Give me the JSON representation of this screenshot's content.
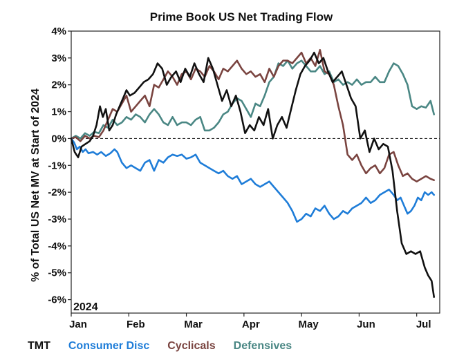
{
  "chart_data": {
    "type": "line",
    "title": "Prime Book US Net Trading Flow",
    "ylabel": "% of Total US Net MV at Start of 2024",
    "xlabel": "",
    "corner_label": "2024",
    "ylim": [
      -6.5,
      4
    ],
    "yticks": [
      4,
      3,
      2,
      1,
      0,
      -1,
      -2,
      -3,
      -4,
      -5,
      -6
    ],
    "ytick_labels": [
      "4%",
      "3%",
      "2%",
      "1%",
      "0%",
      "-1%",
      "-2%",
      "-3%",
      "-4%",
      "-5%",
      "-6%"
    ],
    "xlim": [
      0,
      6.4
    ],
    "xticks": [
      0,
      1,
      2,
      3,
      4,
      5,
      6
    ],
    "xtick_labels": [
      "Jan",
      "Feb",
      "Mar",
      "Apr",
      "May",
      "Jun",
      "Jul"
    ],
    "zero_line": "dashed",
    "legend_position": "bottom-left",
    "series": [
      {
        "name": "TMT",
        "color": "#111111",
        "x": [
          0,
          0.06,
          0.12,
          0.18,
          0.25,
          0.32,
          0.38,
          0.44,
          0.5,
          0.55,
          0.6,
          0.66,
          0.72,
          0.78,
          0.84,
          0.9,
          0.96,
          1.02,
          1.1,
          1.18,
          1.26,
          1.34,
          1.42,
          1.5,
          1.58,
          1.66,
          1.74,
          1.82,
          1.9,
          1.98,
          2.06,
          2.14,
          2.22,
          2.3,
          2.38,
          2.46,
          2.54,
          2.62,
          2.7,
          2.78,
          2.86,
          2.94,
          3.02,
          3.1,
          3.18,
          3.26,
          3.34,
          3.42,
          3.5,
          3.58,
          3.66,
          3.74,
          3.82,
          3.9,
          3.98,
          4.06,
          4.14,
          4.22,
          4.3,
          4.38,
          4.46,
          4.54,
          4.62,
          4.7,
          4.78,
          4.86,
          4.94,
          5.02,
          5.1,
          5.18,
          5.26,
          5.34,
          5.42,
          5.5,
          5.58,
          5.66,
          5.74,
          5.82,
          5.9,
          5.98,
          6.06,
          6.14,
          6.2,
          6.26,
          6.3
        ],
        "y": [
          0,
          -0.5,
          -0.7,
          -0.3,
          -0.2,
          -0.1,
          0.1,
          0.5,
          1.2,
          0.8,
          1.1,
          0.3,
          0.5,
          0.9,
          1.2,
          1.5,
          1.8,
          1.6,
          1.7,
          1.9,
          2.1,
          2.2,
          2.4,
          2.8,
          2.6,
          2.0,
          2.3,
          2.5,
          2.1,
          2.6,
          2.3,
          2.8,
          2.4,
          2.1,
          3.0,
          2.6,
          2.0,
          1.4,
          1.8,
          1.2,
          1.6,
          1.0,
          0.2,
          0.5,
          0.3,
          0.8,
          0.5,
          1.1,
          0.0,
          0.5,
          0.8,
          0.4,
          1.1,
          1.8,
          2.4,
          2.7,
          2.9,
          3.2,
          2.8,
          3.0,
          2.5,
          2.1,
          2.3,
          2.5,
          2.0,
          1.5,
          1.2,
          0.0,
          0.3,
          -0.5,
          0.0,
          -0.4,
          -0.2,
          -0.3,
          -1.2,
          -2.7,
          -3.9,
          -4.3,
          -4.2,
          -4.3,
          -4.2,
          -4.8,
          -5.1,
          -5.3,
          -5.9
        ]
      },
      {
        "name": "Consumer Disc",
        "color": "#1f7dd8",
        "x": [
          0,
          0.05,
          0.1,
          0.15,
          0.2,
          0.25,
          0.3,
          0.38,
          0.45,
          0.52,
          0.6,
          0.68,
          0.75,
          0.8,
          0.88,
          0.96,
          1.04,
          1.12,
          1.2,
          1.28,
          1.36,
          1.44,
          1.52,
          1.6,
          1.68,
          1.76,
          1.84,
          1.92,
          2.0,
          2.08,
          2.16,
          2.24,
          2.32,
          2.4,
          2.48,
          2.56,
          2.64,
          2.72,
          2.8,
          2.88,
          2.96,
          3.04,
          3.12,
          3.2,
          3.28,
          3.36,
          3.44,
          3.52,
          3.6,
          3.68,
          3.76,
          3.84,
          3.92,
          4.0,
          4.08,
          4.16,
          4.24,
          4.32,
          4.4,
          4.48,
          4.56,
          4.64,
          4.72,
          4.8,
          4.88,
          4.96,
          5.04,
          5.12,
          5.2,
          5.28,
          5.36,
          5.44,
          5.52,
          5.6,
          5.66,
          5.72,
          5.78,
          5.84,
          5.9,
          5.96,
          6.02,
          6.08,
          6.14,
          6.2,
          6.26,
          6.3
        ],
        "y": [
          0,
          -0.15,
          -0.4,
          -0.3,
          -0.5,
          -0.4,
          -0.55,
          -0.5,
          -0.6,
          -0.5,
          -0.65,
          -0.55,
          -0.4,
          -0.5,
          -0.9,
          -1.1,
          -1.0,
          -1.1,
          -1.2,
          -0.9,
          -0.8,
          -1.2,
          -0.8,
          -0.9,
          -0.7,
          -0.6,
          -0.65,
          -0.6,
          -0.75,
          -0.7,
          -0.6,
          -0.9,
          -1.0,
          -1.1,
          -1.2,
          -1.3,
          -1.2,
          -1.4,
          -1.5,
          -1.4,
          -1.7,
          -1.6,
          -1.5,
          -1.7,
          -1.8,
          -1.7,
          -1.6,
          -1.8,
          -2.0,
          -2.2,
          -2.4,
          -2.7,
          -3.1,
          -3.0,
          -2.8,
          -2.9,
          -2.6,
          -2.7,
          -2.5,
          -2.8,
          -3.0,
          -2.9,
          -2.7,
          -2.8,
          -2.6,
          -2.5,
          -2.4,
          -2.2,
          -2.4,
          -2.3,
          -2.1,
          -2.0,
          -1.9,
          -2.1,
          -2.3,
          -2.2,
          -2.5,
          -2.8,
          -2.7,
          -2.5,
          -2.2,
          -2.3,
          -2.0,
          -2.1,
          -2.0,
          -2.1
        ]
      },
      {
        "name": "Cyclicals",
        "color": "#7a4440",
        "x": [
          0,
          0.08,
          0.16,
          0.24,
          0.32,
          0.4,
          0.48,
          0.56,
          0.64,
          0.72,
          0.8,
          0.88,
          0.96,
          1.04,
          1.12,
          1.2,
          1.28,
          1.36,
          1.44,
          1.52,
          1.6,
          1.68,
          1.76,
          1.84,
          1.92,
          2.0,
          2.08,
          2.16,
          2.24,
          2.32,
          2.4,
          2.48,
          2.56,
          2.64,
          2.72,
          2.8,
          2.88,
          2.96,
          3.04,
          3.12,
          3.2,
          3.28,
          3.36,
          3.44,
          3.52,
          3.6,
          3.68,
          3.76,
          3.84,
          3.92,
          4.0,
          4.08,
          4.16,
          4.24,
          4.32,
          4.4,
          4.48,
          4.56,
          4.64,
          4.72,
          4.8,
          4.88,
          4.96,
          5.04,
          5.12,
          5.2,
          5.28,
          5.36,
          5.44,
          5.52,
          5.6,
          5.68,
          5.76,
          5.84,
          5.92,
          6.0,
          6.08,
          6.16,
          6.24,
          6.3
        ],
        "y": [
          0,
          0.05,
          -0.1,
          0.1,
          0.0,
          0.1,
          0.05,
          0.3,
          0.7,
          1.1,
          1.0,
          1.3,
          1.6,
          1.0,
          1.2,
          1.4,
          1.6,
          1.2,
          2.0,
          1.9,
          2.2,
          2.5,
          2.3,
          2.0,
          2.4,
          2.5,
          2.2,
          2.6,
          2.5,
          2.3,
          2.7,
          2.5,
          2.2,
          2.6,
          2.5,
          2.7,
          2.9,
          2.6,
          2.4,
          2.5,
          2.3,
          2.4,
          2.1,
          2.6,
          2.3,
          2.7,
          2.9,
          2.9,
          2.8,
          3.0,
          3.2,
          2.8,
          3.0,
          2.7,
          3.3,
          2.5,
          2.4,
          2.0,
          1.2,
          0.5,
          -0.6,
          -0.8,
          -0.6,
          -1.0,
          -1.3,
          -1.1,
          -1.0,
          -1.3,
          -1.1,
          -0.6,
          -0.5,
          -1.0,
          -1.4,
          -1.3,
          -1.5,
          -1.6,
          -1.5,
          -1.4,
          -1.5,
          -1.55
        ]
      },
      {
        "name": "Defensives",
        "color": "#4a8784",
        "x": [
          0,
          0.08,
          0.16,
          0.24,
          0.32,
          0.4,
          0.48,
          0.56,
          0.64,
          0.72,
          0.8,
          0.88,
          0.96,
          1.04,
          1.12,
          1.2,
          1.28,
          1.36,
          1.44,
          1.52,
          1.6,
          1.68,
          1.76,
          1.84,
          1.92,
          2.0,
          2.08,
          2.16,
          2.24,
          2.32,
          2.4,
          2.48,
          2.56,
          2.64,
          2.72,
          2.8,
          2.88,
          2.96,
          3.04,
          3.12,
          3.2,
          3.28,
          3.36,
          3.44,
          3.52,
          3.6,
          3.68,
          3.76,
          3.84,
          3.92,
          4.0,
          4.08,
          4.16,
          4.24,
          4.32,
          4.4,
          4.48,
          4.56,
          4.64,
          4.72,
          4.8,
          4.88,
          4.96,
          5.04,
          5.12,
          5.2,
          5.28,
          5.36,
          5.44,
          5.52,
          5.6,
          5.68,
          5.76,
          5.84,
          5.92,
          6.0,
          6.08,
          6.16,
          6.24,
          6.3
        ],
        "y": [
          0,
          0.1,
          0.0,
          0.2,
          0.1,
          0.25,
          0.2,
          0.5,
          0.4,
          0.7,
          0.5,
          0.6,
          0.8,
          0.7,
          0.9,
          0.8,
          0.6,
          0.9,
          1.1,
          0.9,
          0.6,
          0.5,
          0.8,
          0.5,
          0.6,
          0.6,
          0.5,
          0.7,
          0.8,
          0.3,
          0.3,
          0.4,
          0.6,
          0.9,
          1.0,
          1.3,
          1.5,
          1.4,
          1.1,
          0.8,
          1.3,
          1.2,
          1.6,
          2.1,
          2.3,
          2.8,
          2.7,
          2.9,
          2.6,
          2.8,
          2.9,
          2.7,
          2.5,
          2.5,
          2.7,
          2.4,
          2.5,
          2.1,
          2.2,
          2.0,
          2.1,
          2.0,
          2.2,
          2.0,
          2.1,
          2.1,
          2.3,
          2.1,
          2.1,
          2.5,
          2.8,
          2.7,
          2.4,
          2.0,
          1.2,
          1.1,
          1.2,
          1.15,
          1.4,
          0.9
        ]
      }
    ]
  }
}
